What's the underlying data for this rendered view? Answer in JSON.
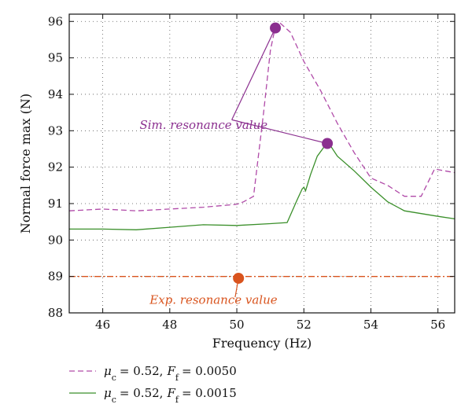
{
  "chart_data": {
    "type": "line",
    "title": "",
    "xlabel": "Frequency (Hz)",
    "ylabel": "Normal force max (N)",
    "xlim": [
      45,
      56.5
    ],
    "ylim": [
      88,
      96.2
    ],
    "xticks": [
      46,
      48,
      50,
      52,
      54,
      56
    ],
    "yticks": [
      88,
      89,
      90,
      91,
      92,
      93,
      94,
      95,
      96
    ],
    "xtick_labels": [
      "46",
      "48",
      "50",
      "52",
      "54",
      "56"
    ],
    "ytick_labels": [
      "88",
      "89",
      "90",
      "91",
      "92",
      "93",
      "94",
      "95",
      "96"
    ],
    "grid": true,
    "legend_position": "bottom-left-outside",
    "series": [
      {
        "name": "μc = 0.52, Ff = 0.0050",
        "legend": {
          "mu_sub": "c",
          "mu_value": "= 0.52,",
          "f_sub": "f",
          "f_value": "= 0.0050"
        },
        "color": "#b04aa8",
        "style": "dashed",
        "x": [
          45,
          46,
          47,
          48,
          49,
          50,
          50.2,
          50.5,
          50.8,
          51.0,
          51.15,
          51.3,
          51.6,
          52.0,
          52.5,
          53.0,
          53.5,
          54.0,
          54.5,
          55.0,
          55.5,
          55.9,
          56.5
        ],
        "y": [
          90.8,
          90.85,
          90.8,
          90.85,
          90.9,
          90.98,
          91.05,
          91.2,
          93.5,
          95.2,
          95.85,
          95.95,
          95.7,
          94.9,
          94.1,
          93.2,
          92.4,
          91.7,
          91.5,
          91.2,
          91.2,
          91.95,
          91.85
        ]
      },
      {
        "name": "μc = 0.52, Ff = 0.0015",
        "legend": {
          "mu_sub": "c",
          "mu_value": "= 0.52,",
          "f_sub": "f",
          "f_value": "= 0.0015"
        },
        "color": "#3a8f2a",
        "style": "solid",
        "x": [
          45,
          46,
          47,
          48,
          49,
          50,
          51,
          51.5,
          51.8,
          51.95,
          52.0,
          52.05,
          52.2,
          52.4,
          52.6,
          52.75,
          53.0,
          53.5,
          54.0,
          54.5,
          55.0,
          56.0,
          56.5
        ],
        "y": [
          90.3,
          90.3,
          90.28,
          90.35,
          90.42,
          90.4,
          90.45,
          90.48,
          91.1,
          91.4,
          91.45,
          91.35,
          91.8,
          92.3,
          92.55,
          92.65,
          92.3,
          91.9,
          91.45,
          91.05,
          90.8,
          90.65,
          90.58
        ]
      },
      {
        "name": "Exp. resonance value",
        "color": "#d9541e",
        "style": "dashdot",
        "x": [
          45,
          56.5
        ],
        "y": [
          89,
          89
        ]
      }
    ],
    "points": [
      {
        "x": 51.15,
        "y": 95.82,
        "color": "#8b2f8f"
      },
      {
        "x": 52.7,
        "y": 92.65,
        "color": "#8b2f8f"
      },
      {
        "x": 50.05,
        "y": 88.95,
        "color": "#d9541e"
      }
    ],
    "annotations": [
      {
        "text": "Sim. resonance value",
        "x": 47.1,
        "y": 93.05,
        "color": "#8b2f8f",
        "anchor": {
          "x": 49.85,
          "y": 93.3
        },
        "targets": [
          {
            "x": 51.15,
            "y": 95.82
          },
          {
            "x": 52.7,
            "y": 92.65
          }
        ]
      },
      {
        "text": "Exp. resonance value",
        "x": 47.4,
        "y": 88.25,
        "color": "#d9541e",
        "anchor": {
          "x": 49.95,
          "y": 88.43
        },
        "targets": [
          {
            "x": 50.05,
            "y": 88.95
          }
        ]
      }
    ]
  }
}
